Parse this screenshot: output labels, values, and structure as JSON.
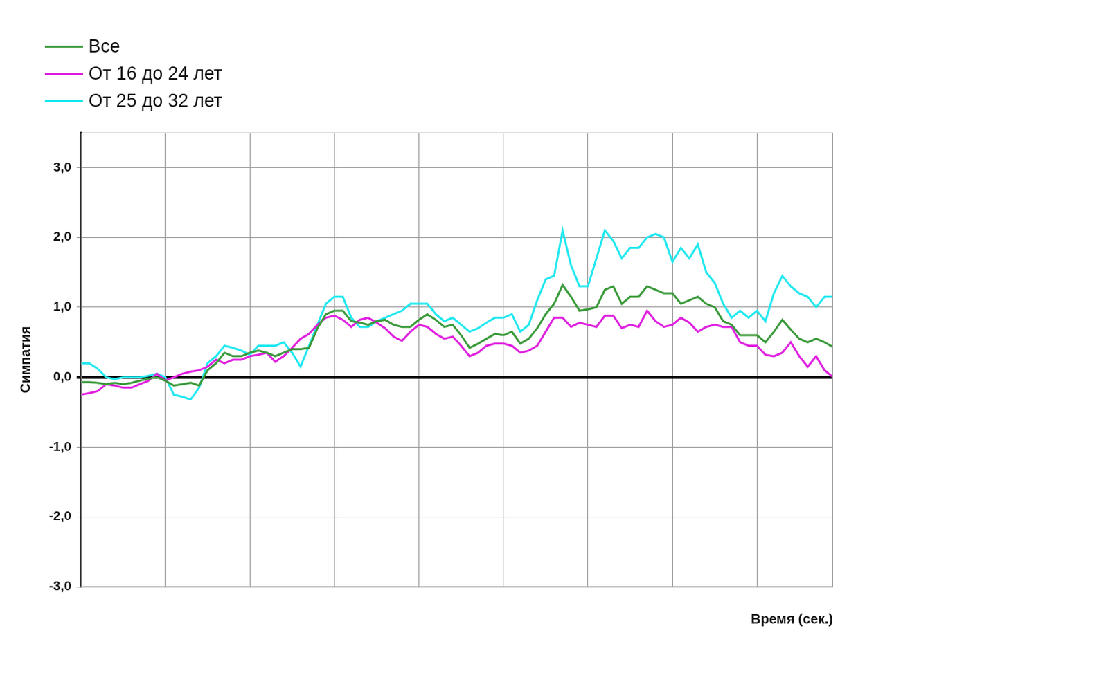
{
  "chart_data": {
    "type": "line",
    "y_label": "Симпатия",
    "x_label": "Время (сек.)",
    "legend": "top-left",
    "grid": true,
    "tick_labels": "y",
    "xlim": [
      0,
      8.9
    ],
    "xticks": [
      0,
      1,
      2,
      3,
      4,
      5,
      6,
      7,
      8
    ],
    "ylim": [
      -3,
      3.5
    ],
    "yticks": [
      {
        "value": -3,
        "label": "-3,0"
      },
      {
        "value": -2,
        "label": "-2,0"
      },
      {
        "value": -1,
        "label": "-1,0"
      },
      {
        "value": 0,
        "label": "0,0"
      },
      {
        "value": 1,
        "label": "1,0"
      },
      {
        "value": 2,
        "label": "2,0"
      },
      {
        "value": 3,
        "label": "3,0"
      }
    ],
    "x": [
      0,
      0.1,
      0.2,
      0.3,
      0.4,
      0.5,
      0.6,
      0.7,
      0.8,
      0.9,
      1,
      1.1,
      1.2,
      1.3,
      1.4,
      1.5,
      1.6,
      1.7,
      1.8,
      1.9,
      2,
      2.1,
      2.2,
      2.3,
      2.4,
      2.5,
      2.6,
      2.7,
      2.8,
      2.9,
      3,
      3.1,
      3.2,
      3.3,
      3.4,
      3.5,
      3.6,
      3.7,
      3.8,
      3.9,
      4,
      4.1,
      4.2,
      4.3,
      4.4,
      4.5,
      4.6,
      4.7,
      4.8,
      4.9,
      5,
      5.1,
      5.2,
      5.3,
      5.4,
      5.5,
      5.6,
      5.7,
      5.8,
      5.9,
      6,
      6.1,
      6.2,
      6.3,
      6.4,
      6.5,
      6.6,
      6.7,
      6.8,
      6.9,
      7,
      7.1,
      7.2,
      7.3,
      7.4,
      7.5,
      7.6,
      7.7,
      7.8,
      7.9,
      8,
      8.1,
      8.2,
      8.3,
      8.4,
      8.5,
      8.6,
      8.7,
      8.8,
      8.9
    ],
    "series": [
      {
        "name": "Все",
        "color": "#3a9a3a",
        "values": [
          -0.07,
          -0.07,
          -0.08,
          -0.1,
          -0.08,
          -0.1,
          -0.08,
          -0.05,
          -0.02,
          0.0,
          -0.05,
          -0.12,
          -0.1,
          -0.08,
          -0.12,
          0.1,
          0.2,
          0.35,
          0.3,
          0.3,
          0.35,
          0.38,
          0.35,
          0.3,
          0.35,
          0.4,
          0.4,
          0.42,
          0.7,
          0.9,
          0.95,
          0.95,
          0.8,
          0.78,
          0.75,
          0.8,
          0.82,
          0.75,
          0.72,
          0.72,
          0.82,
          0.9,
          0.82,
          0.72,
          0.75,
          0.6,
          0.42,
          0.48,
          0.55,
          0.62,
          0.6,
          0.65,
          0.48,
          0.55,
          0.7,
          0.9,
          1.05,
          1.32,
          1.15,
          0.95,
          0.97,
          1.0,
          1.25,
          1.3,
          1.05,
          1.15,
          1.15,
          1.3,
          1.25,
          1.2,
          1.2,
          1.05,
          1.1,
          1.15,
          1.05,
          1.0,
          0.8,
          0.75,
          0.6,
          0.6,
          0.6,
          0.5,
          0.65,
          0.82,
          0.68,
          0.55,
          0.5,
          0.55,
          0.5,
          0.43
        ]
      },
      {
        "name": "От 16 до 24 лет",
        "color": "#e020e0",
        "values": [
          -0.25,
          -0.23,
          -0.2,
          -0.1,
          -0.12,
          -0.15,
          -0.15,
          -0.1,
          -0.05,
          0.05,
          -0.05,
          0.0,
          0.05,
          0.08,
          0.1,
          0.15,
          0.25,
          0.2,
          0.25,
          0.25,
          0.3,
          0.32,
          0.35,
          0.22,
          0.3,
          0.42,
          0.55,
          0.62,
          0.75,
          0.85,
          0.88,
          0.82,
          0.72,
          0.82,
          0.85,
          0.78,
          0.7,
          0.58,
          0.52,
          0.65,
          0.75,
          0.72,
          0.62,
          0.55,
          0.58,
          0.45,
          0.3,
          0.35,
          0.45,
          0.48,
          0.48,
          0.45,
          0.35,
          0.38,
          0.45,
          0.65,
          0.85,
          0.85,
          0.72,
          0.78,
          0.75,
          0.72,
          0.88,
          0.88,
          0.7,
          0.75,
          0.72,
          0.95,
          0.8,
          0.72,
          0.75,
          0.85,
          0.78,
          0.65,
          0.72,
          0.75,
          0.72,
          0.72,
          0.5,
          0.45,
          0.45,
          0.32,
          0.3,
          0.35,
          0.5,
          0.3,
          0.15,
          0.3,
          0.1,
          0.0
        ]
      },
      {
        "name": "От 25 до 32 лет",
        "color": "#20e8f0",
        "values": [
          0.2,
          0.2,
          0.12,
          0.0,
          -0.03,
          0.0,
          0.0,
          0.0,
          0.02,
          0.05,
          0.0,
          -0.25,
          -0.28,
          -0.32,
          -0.15,
          0.2,
          0.3,
          0.45,
          0.42,
          0.38,
          0.32,
          0.45,
          0.45,
          0.45,
          0.5,
          0.35,
          0.15,
          0.45,
          0.75,
          1.05,
          1.15,
          1.15,
          0.85,
          0.72,
          0.72,
          0.8,
          0.85,
          0.9,
          0.95,
          1.05,
          1.05,
          1.05,
          0.9,
          0.8,
          0.85,
          0.75,
          0.65,
          0.7,
          0.78,
          0.85,
          0.85,
          0.9,
          0.65,
          0.75,
          1.1,
          1.4,
          1.45,
          2.1,
          1.6,
          1.3,
          1.3,
          1.7,
          2.1,
          1.95,
          1.7,
          1.85,
          1.85,
          2.0,
          2.05,
          2.0,
          1.65,
          1.85,
          1.7,
          1.9,
          1.5,
          1.35,
          1.05,
          0.85,
          0.95,
          0.85,
          0.95,
          0.8,
          1.2,
          1.45,
          1.3,
          1.2,
          1.15,
          1.0,
          1.15,
          1.15
        ]
      }
    ]
  }
}
